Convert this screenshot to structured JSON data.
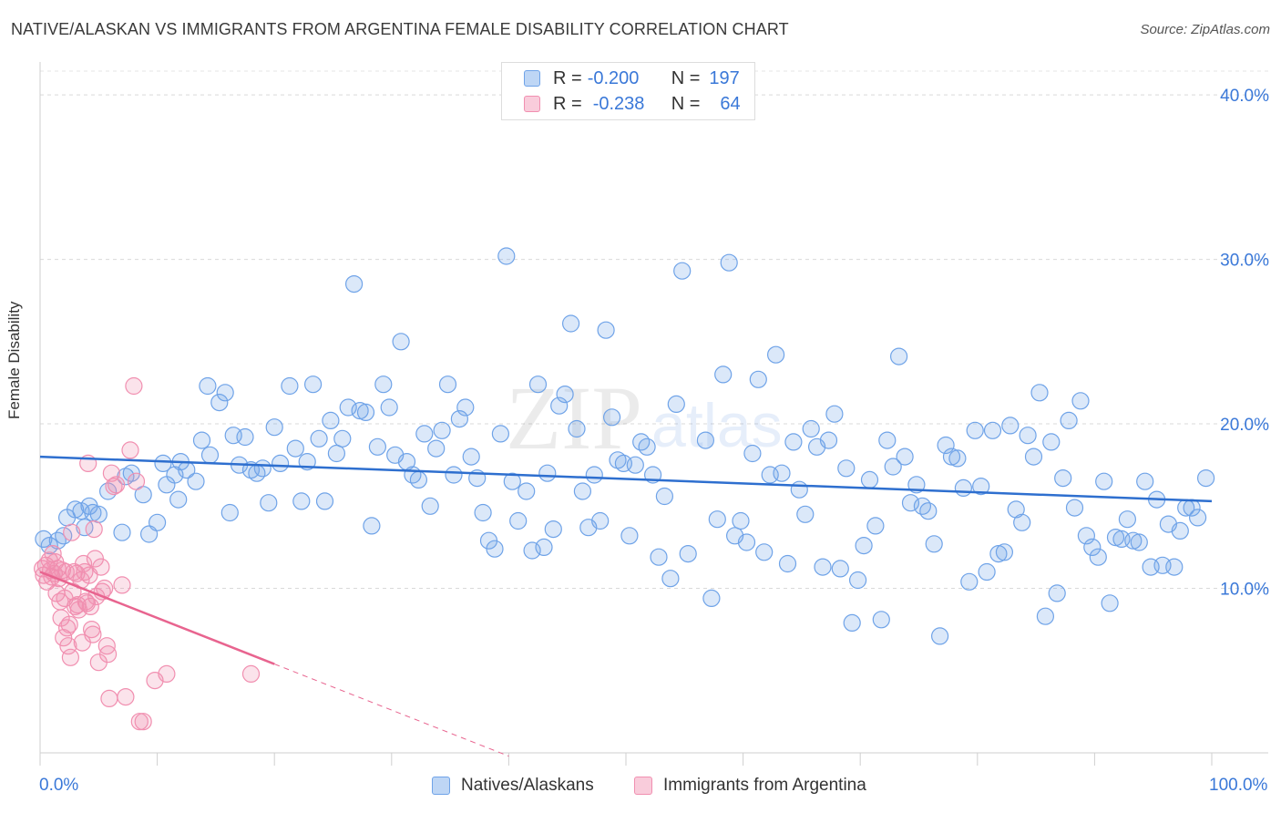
{
  "title": "NATIVE/ALASKAN VS IMMIGRANTS FROM ARGENTINA FEMALE DISABILITY CORRELATION CHART",
  "source": "Source: ZipAtlas.com",
  "watermark": {
    "part1": "ZIP",
    "part2": "atlas"
  },
  "legend_stats": [
    {
      "r_label": "R =",
      "r_value": "-0.200",
      "n_label": "N =",
      "n_value": "197",
      "color": "#6fa3e8"
    },
    {
      "r_label": "R =",
      "r_value": "-0.238",
      "n_label": "N =",
      "n_value": "64",
      "color": "#f18fb0"
    }
  ],
  "x_tick_labels": {
    "left": "0.0%",
    "right": "100.0%"
  },
  "chart_data": {
    "type": "scatter",
    "title": "NATIVE/ALASKAN VS IMMIGRANTS FROM ARGENTINA FEMALE DISABILITY CORRELATION CHART",
    "xlabel": "",
    "ylabel": "Female Disability",
    "xlim": [
      0,
      100
    ],
    "ylim": [
      0,
      42
    ],
    "y_ticks": [
      10,
      20,
      30,
      40
    ],
    "y_tick_labels": [
      "10.0%",
      "20.0%",
      "30.0%",
      "40.0%"
    ],
    "grid": true,
    "legend_position": "bottom",
    "series": [
      {
        "name": "Natives/Alaskans",
        "color": "#6fa3e8",
        "trend": {
          "x": [
            0,
            100
          ],
          "y": [
            18.0,
            15.3
          ]
        },
        "points": [
          [
            0.3,
            13.0
          ],
          [
            0.8,
            12.6
          ],
          [
            1.5,
            12.9
          ],
          [
            2.0,
            13.2
          ],
          [
            2.3,
            14.3
          ],
          [
            3.0,
            14.8
          ],
          [
            3.5,
            14.7
          ],
          [
            3.8,
            13.7
          ],
          [
            4.2,
            15.0
          ],
          [
            4.5,
            14.6
          ],
          [
            5.0,
            14.5
          ],
          [
            5.8,
            15.9
          ],
          [
            7.0,
            13.4
          ],
          [
            7.3,
            16.8
          ],
          [
            7.8,
            17.0
          ],
          [
            8.8,
            15.7
          ],
          [
            9.3,
            13.3
          ],
          [
            10.0,
            14.0
          ],
          [
            10.5,
            17.6
          ],
          [
            10.8,
            16.3
          ],
          [
            11.5,
            16.9
          ],
          [
            11.8,
            15.4
          ],
          [
            12.0,
            17.7
          ],
          [
            12.5,
            17.2
          ],
          [
            13.3,
            16.5
          ],
          [
            13.8,
            19.0
          ],
          [
            14.5,
            18.1
          ],
          [
            14.3,
            22.3
          ],
          [
            15.3,
            21.3
          ],
          [
            15.8,
            21.9
          ],
          [
            16.2,
            14.6
          ],
          [
            16.5,
            19.3
          ],
          [
            17.0,
            17.5
          ],
          [
            17.5,
            19.2
          ],
          [
            18.0,
            17.2
          ],
          [
            18.5,
            17.0
          ],
          [
            19.0,
            17.3
          ],
          [
            19.5,
            15.2
          ],
          [
            20.0,
            19.8
          ],
          [
            20.5,
            17.6
          ],
          [
            21.3,
            22.3
          ],
          [
            21.8,
            18.5
          ],
          [
            22.3,
            15.3
          ],
          [
            22.8,
            17.7
          ],
          [
            23.3,
            22.4
          ],
          [
            23.8,
            19.1
          ],
          [
            24.3,
            15.3
          ],
          [
            24.8,
            20.2
          ],
          [
            25.3,
            18.2
          ],
          [
            25.8,
            19.1
          ],
          [
            26.3,
            21.0
          ],
          [
            26.8,
            28.5
          ],
          [
            27.3,
            20.8
          ],
          [
            27.8,
            20.7
          ],
          [
            28.3,
            13.8
          ],
          [
            28.8,
            18.6
          ],
          [
            29.3,
            22.4
          ],
          [
            29.8,
            21.0
          ],
          [
            30.3,
            18.1
          ],
          [
            30.8,
            25.0
          ],
          [
            31.3,
            17.7
          ],
          [
            31.8,
            16.9
          ],
          [
            32.3,
            16.6
          ],
          [
            32.8,
            19.4
          ],
          [
            33.3,
            15.0
          ],
          [
            33.8,
            18.5
          ],
          [
            34.3,
            19.6
          ],
          [
            34.8,
            22.4
          ],
          [
            35.3,
            16.9
          ],
          [
            35.8,
            20.3
          ],
          [
            36.3,
            21.0
          ],
          [
            36.8,
            18.0
          ],
          [
            37.3,
            16.7
          ],
          [
            37.8,
            14.6
          ],
          [
            38.3,
            12.9
          ],
          [
            38.8,
            12.4
          ],
          [
            39.3,
            19.4
          ],
          [
            39.8,
            30.2
          ],
          [
            40.3,
            16.5
          ],
          [
            40.8,
            14.1
          ],
          [
            41.5,
            15.9
          ],
          [
            42.0,
            12.3
          ],
          [
            42.5,
            22.4
          ],
          [
            43.0,
            12.5
          ],
          [
            43.3,
            17.0
          ],
          [
            43.8,
            13.6
          ],
          [
            44.3,
            21.1
          ],
          [
            44.8,
            21.8
          ],
          [
            45.3,
            26.1
          ],
          [
            45.8,
            19.7
          ],
          [
            46.3,
            15.9
          ],
          [
            46.8,
            13.7
          ],
          [
            47.3,
            16.9
          ],
          [
            47.8,
            14.1
          ],
          [
            48.3,
            25.7
          ],
          [
            48.8,
            20.4
          ],
          [
            49.3,
            17.8
          ],
          [
            49.8,
            17.6
          ],
          [
            50.3,
            13.2
          ],
          [
            50.8,
            17.5
          ],
          [
            51.3,
            18.9
          ],
          [
            51.8,
            18.6
          ],
          [
            52.3,
            16.9
          ],
          [
            52.8,
            11.9
          ],
          [
            53.3,
            15.6
          ],
          [
            53.8,
            10.6
          ],
          [
            54.3,
            21.2
          ],
          [
            54.8,
            29.3
          ],
          [
            55.3,
            12.1
          ],
          [
            56.8,
            19.0
          ],
          [
            57.3,
            9.4
          ],
          [
            57.8,
            14.2
          ],
          [
            58.3,
            23.0
          ],
          [
            58.8,
            29.8
          ],
          [
            59.3,
            13.2
          ],
          [
            59.8,
            14.1
          ],
          [
            60.3,
            12.8
          ],
          [
            60.8,
            18.2
          ],
          [
            61.3,
            22.7
          ],
          [
            61.8,
            12.2
          ],
          [
            62.3,
            16.9
          ],
          [
            62.8,
            24.2
          ],
          [
            63.3,
            17.0
          ],
          [
            63.8,
            11.5
          ],
          [
            64.3,
            18.9
          ],
          [
            64.8,
            16.0
          ],
          [
            65.3,
            14.5
          ],
          [
            65.8,
            19.7
          ],
          [
            66.3,
            18.6
          ],
          [
            66.8,
            11.3
          ],
          [
            67.3,
            19.0
          ],
          [
            67.8,
            20.6
          ],
          [
            68.3,
            11.2
          ],
          [
            68.8,
            17.3
          ],
          [
            69.3,
            7.9
          ],
          [
            69.8,
            10.5
          ],
          [
            70.3,
            12.6
          ],
          [
            70.8,
            16.6
          ],
          [
            71.3,
            13.8
          ],
          [
            71.8,
            8.1
          ],
          [
            72.3,
            19.0
          ],
          [
            72.8,
            17.4
          ],
          [
            73.3,
            24.1
          ],
          [
            73.8,
            18.0
          ],
          [
            74.3,
            15.2
          ],
          [
            74.8,
            16.3
          ],
          [
            75.3,
            15.0
          ],
          [
            75.8,
            14.7
          ],
          [
            76.3,
            12.7
          ],
          [
            76.8,
            7.1
          ],
          [
            77.3,
            18.7
          ],
          [
            77.8,
            18.0
          ],
          [
            78.3,
            17.9
          ],
          [
            78.8,
            16.1
          ],
          [
            79.3,
            10.4
          ],
          [
            79.8,
            19.6
          ],
          [
            80.3,
            16.2
          ],
          [
            80.8,
            11.0
          ],
          [
            81.3,
            19.6
          ],
          [
            81.8,
            12.1
          ],
          [
            82.3,
            12.2
          ],
          [
            82.8,
            19.9
          ],
          [
            83.3,
            14.8
          ],
          [
            83.8,
            14.0
          ],
          [
            84.3,
            19.3
          ],
          [
            84.8,
            18.0
          ],
          [
            85.3,
            21.9
          ],
          [
            85.8,
            8.3
          ],
          [
            86.3,
            18.9
          ],
          [
            86.8,
            9.7
          ],
          [
            87.3,
            16.7
          ],
          [
            87.8,
            20.2
          ],
          [
            88.3,
            14.9
          ],
          [
            88.8,
            21.4
          ],
          [
            89.3,
            13.2
          ],
          [
            89.8,
            12.5
          ],
          [
            90.3,
            11.9
          ],
          [
            90.8,
            16.5
          ],
          [
            91.3,
            9.1
          ],
          [
            91.8,
            13.1
          ],
          [
            92.3,
            13.0
          ],
          [
            92.8,
            14.2
          ],
          [
            93.3,
            12.9
          ],
          [
            93.8,
            12.8
          ],
          [
            94.3,
            16.5
          ],
          [
            94.8,
            11.3
          ],
          [
            95.3,
            15.4
          ],
          [
            95.8,
            11.4
          ],
          [
            96.3,
            13.9
          ],
          [
            96.8,
            11.3
          ],
          [
            97.3,
            13.5
          ],
          [
            97.8,
            14.9
          ],
          [
            98.3,
            14.9
          ],
          [
            98.8,
            14.3
          ],
          [
            99.5,
            16.7
          ]
        ]
      },
      {
        "name": "Immigrants from Argentina",
        "color": "#f18fb0",
        "trend": {
          "x": [
            0,
            20
          ],
          "y": [
            11.0,
            5.4
          ],
          "dashed_to": [
            40,
            -0.2
          ]
        },
        "points": [
          [
            0.2,
            11.2
          ],
          [
            0.3,
            10.8
          ],
          [
            0.5,
            11.4
          ],
          [
            0.6,
            10.4
          ],
          [
            0.8,
            11.7
          ],
          [
            0.9,
            11.1
          ],
          [
            1.0,
            10.7
          ],
          [
            1.1,
            12.1
          ],
          [
            1.2,
            10.9
          ],
          [
            1.3,
            11.6
          ],
          [
            1.4,
            9.7
          ],
          [
            1.5,
            11.2
          ],
          [
            1.6,
            10.6
          ],
          [
            1.7,
            9.2
          ],
          [
            1.8,
            8.2
          ],
          [
            1.9,
            11.1
          ],
          [
            2.0,
            7.0
          ],
          [
            2.1,
            9.4
          ],
          [
            2.2,
            11.0
          ],
          [
            2.3,
            7.6
          ],
          [
            2.4,
            6.5
          ],
          [
            2.5,
            7.8
          ],
          [
            2.6,
            5.8
          ],
          [
            2.7,
            13.4
          ],
          [
            2.8,
            9.8
          ],
          [
            2.9,
            11.0
          ],
          [
            3.0,
            8.9
          ],
          [
            3.1,
            10.9
          ],
          [
            3.2,
            9.0
          ],
          [
            3.3,
            8.7
          ],
          [
            3.5,
            10.5
          ],
          [
            3.6,
            6.7
          ],
          [
            3.7,
            11.5
          ],
          [
            3.8,
            11.0
          ],
          [
            3.9,
            9.2
          ],
          [
            4.0,
            9.1
          ],
          [
            4.1,
            17.6
          ],
          [
            4.2,
            10.8
          ],
          [
            4.3,
            8.9
          ],
          [
            4.4,
            7.5
          ],
          [
            4.5,
            7.2
          ],
          [
            4.6,
            13.6
          ],
          [
            4.7,
            11.8
          ],
          [
            4.8,
            9.5
          ],
          [
            5.0,
            5.5
          ],
          [
            5.2,
            11.3
          ],
          [
            5.3,
            9.8
          ],
          [
            5.5,
            10.0
          ],
          [
            5.7,
            6.5
          ],
          [
            5.8,
            6.0
          ],
          [
            5.9,
            3.3
          ],
          [
            6.1,
            17.0
          ],
          [
            6.3,
            16.2
          ],
          [
            6.5,
            16.3
          ],
          [
            7.0,
            10.2
          ],
          [
            7.3,
            3.4
          ],
          [
            7.7,
            18.4
          ],
          [
            8.0,
            22.3
          ],
          [
            8.2,
            16.5
          ],
          [
            8.5,
            1.9
          ],
          [
            8.8,
            1.9
          ],
          [
            9.8,
            4.4
          ],
          [
            10.8,
            4.8
          ],
          [
            18.0,
            4.8
          ]
        ]
      }
    ]
  }
}
